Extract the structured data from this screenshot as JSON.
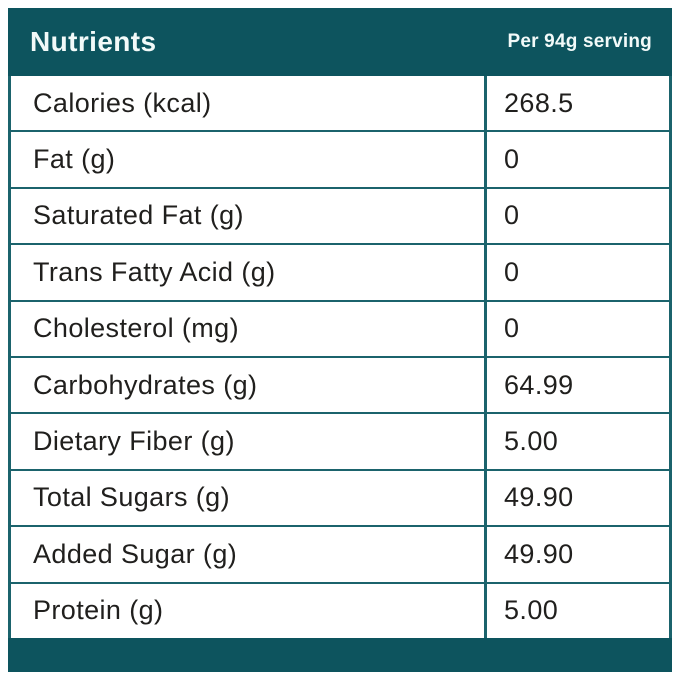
{
  "colors": {
    "teal": "#0d545e",
    "line": "#1b636c",
    "text": "#201f1d",
    "header_text": "#f2faf9",
    "bg": "#ffffff"
  },
  "table": {
    "header": {
      "col1": "Nutrients",
      "col2": "Per 94g serving"
    },
    "rows": [
      {
        "label": "Calories (kcal)",
        "value": "268.5"
      },
      {
        "label": "Fat (g)",
        "value": "0"
      },
      {
        "label": "Saturated Fat (g)",
        "value": "0"
      },
      {
        "label": "Trans Fatty Acid (g)",
        "value": "0"
      },
      {
        "label": "Cholesterol (mg)",
        "value": "0"
      },
      {
        "label": "Carbohydrates (g)",
        "value": "64.99"
      },
      {
        "label": "Dietary Fiber (g)",
        "value": "5.00"
      },
      {
        "label": "Total Sugars (g)",
        "value": "49.90"
      },
      {
        "label": "Added Sugar (g)",
        "value": "49.90"
      },
      {
        "label": "Protein (g)",
        "value": "5.00"
      }
    ]
  }
}
